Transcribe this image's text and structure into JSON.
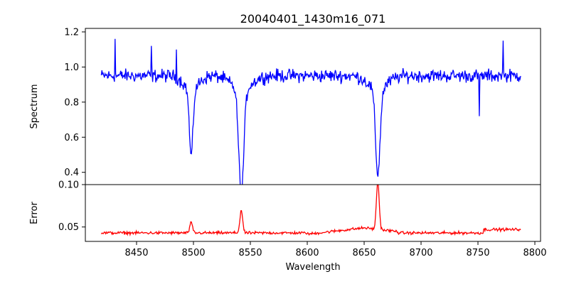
{
  "chart_data": [
    {
      "type": "line",
      "title": "20040401_1430m16_071",
      "xlabel": "",
      "ylabel": "Spectrum",
      "xlim": [
        8405,
        8805
      ],
      "ylim": [
        0.33,
        1.22
      ],
      "yticks": [
        0.4,
        0.6,
        0.8,
        1.0,
        1.2
      ],
      "ytick_labels": [
        "0.4",
        "0.6",
        "0.8",
        "1.0",
        "1.2"
      ],
      "color": "#0000ff",
      "x_range": [
        8419,
        8788
      ],
      "baseline": 0.95,
      "noise": 0.055,
      "absorption_lines": [
        {
          "center": 8498,
          "depth": 0.38,
          "width": 1.6
        },
        {
          "center": 8542,
          "depth": 0.6,
          "width": 2.2
        },
        {
          "center": 8662,
          "depth": 0.48,
          "width": 2.0
        }
      ],
      "spikes": [
        {
          "x": 8431,
          "y": 1.16
        },
        {
          "x": 8463,
          "y": 1.12
        },
        {
          "x": 8485,
          "y": 1.1
        },
        {
          "x": 8772,
          "y": 1.15
        },
        {
          "x": 8751,
          "y": 0.72
        }
      ]
    },
    {
      "type": "line",
      "title": "",
      "xlabel": "Wavelength",
      "ylabel": "Error",
      "xlim": [
        8405,
        8805
      ],
      "ylim": [
        0.033,
        0.1
      ],
      "yticks": [
        0.05,
        0.1
      ],
      "ytick_labels": [
        "0.05",
        "0.10"
      ],
      "xticks": [
        8450,
        8500,
        8550,
        8600,
        8650,
        8700,
        8750,
        8800
      ],
      "xtick_labels": [
        "8450",
        "8500",
        "8550",
        "8600",
        "8650",
        "8700",
        "8750",
        "8800"
      ],
      "color": "#ff0000",
      "x_range": [
        8419,
        8788
      ],
      "baseline": 0.043,
      "noise": 0.0025,
      "peaks": [
        {
          "center": 8498,
          "height": 0.055
        },
        {
          "center": 8542,
          "height": 0.07
        },
        {
          "center": 8662,
          "height": 0.1
        }
      ]
    }
  ]
}
